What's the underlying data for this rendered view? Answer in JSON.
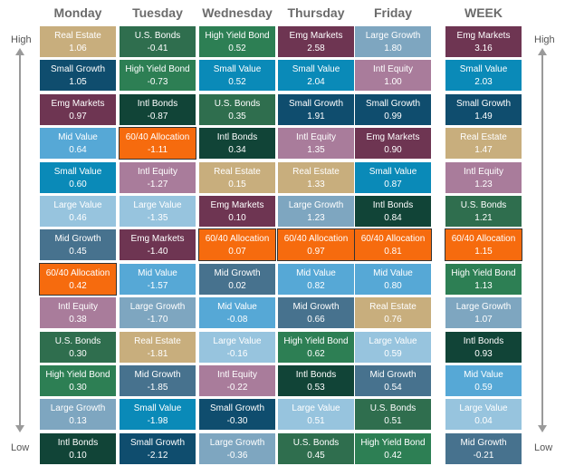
{
  "side_labels": {
    "high": "High",
    "low": "Low"
  },
  "colors": {
    "Real Estate": "#c8ae7d",
    "Small Growth": "#0f4d6e",
    "Emg Markets": "#6e3552",
    "Mid Value": "#56a8d6",
    "Small Value": "#0a8ab8",
    "Large Value": "#97c4de",
    "Mid Growth": "#47728e",
    "60/40 Allocation": "#f66b0e",
    "Intl Equity": "#a97c9b",
    "U.S. Bonds": "#2f6e4e",
    "High Yield Bond": "#2d7f54",
    "Large Growth": "#7ea6c0",
    "Intl Bonds": "#114437"
  },
  "chart_data": {
    "type": "table",
    "columns": [
      {
        "header": "Monday",
        "rows": [
          {
            "name": "Real Estate",
            "value": "1.06"
          },
          {
            "name": "Small Growth",
            "value": "1.05"
          },
          {
            "name": "Emg Markets",
            "value": "0.97"
          },
          {
            "name": "Mid Value",
            "value": "0.64"
          },
          {
            "name": "Small Value",
            "value": "0.60"
          },
          {
            "name": "Large Value",
            "value": "0.46"
          },
          {
            "name": "Mid Growth",
            "value": "0.45"
          },
          {
            "name": "60/40 Allocation",
            "value": "0.42"
          },
          {
            "name": "Intl Equity",
            "value": "0.38"
          },
          {
            "name": "U.S. Bonds",
            "value": "0.30"
          },
          {
            "name": "High Yield Bond",
            "value": "0.30"
          },
          {
            "name": "Large Growth",
            "value": "0.13"
          },
          {
            "name": "Intl Bonds",
            "value": "0.10"
          }
        ]
      },
      {
        "header": "Tuesday",
        "rows": [
          {
            "name": "U.S. Bonds",
            "value": "-0.41"
          },
          {
            "name": "High Yield Bond",
            "value": "-0.73"
          },
          {
            "name": "Intl Bonds",
            "value": "-0.87"
          },
          {
            "name": "60/40 Allocation",
            "value": "-1.11"
          },
          {
            "name": "Intl Equity",
            "value": "-1.27"
          },
          {
            "name": "Large Value",
            "value": "-1.35"
          },
          {
            "name": "Emg Markets",
            "value": "-1.40"
          },
          {
            "name": "Mid Value",
            "value": "-1.57"
          },
          {
            "name": "Large Growth",
            "value": "-1.70"
          },
          {
            "name": "Real Estate",
            "value": "-1.81"
          },
          {
            "name": "Mid Growth",
            "value": "-1.85"
          },
          {
            "name": "Small Value",
            "value": "-1.98"
          },
          {
            "name": "Small Growth",
            "value": "-2.12"
          }
        ]
      },
      {
        "header": "Wednesday",
        "rows": [
          {
            "name": "High Yield Bond",
            "value": "0.52"
          },
          {
            "name": "Small Value",
            "value": "0.52"
          },
          {
            "name": "U.S. Bonds",
            "value": "0.35"
          },
          {
            "name": "Intl Bonds",
            "value": "0.34"
          },
          {
            "name": "Real Estate",
            "value": "0.15"
          },
          {
            "name": "Emg Markets",
            "value": "0.10"
          },
          {
            "name": "60/40 Allocation",
            "value": "0.07"
          },
          {
            "name": "Mid Growth",
            "value": "0.02"
          },
          {
            "name": "Mid Value",
            "value": "-0.08"
          },
          {
            "name": "Large Value",
            "value": "-0.16"
          },
          {
            "name": "Intl Equity",
            "value": "-0.22"
          },
          {
            "name": "Small Growth",
            "value": "-0.30"
          },
          {
            "name": "Large Growth",
            "value": "-0.36"
          }
        ]
      },
      {
        "header": "Thursday",
        "rows": [
          {
            "name": "Emg Markets",
            "value": "2.58"
          },
          {
            "name": "Small Value",
            "value": "2.04"
          },
          {
            "name": "Small Growth",
            "value": "1.91"
          },
          {
            "name": "Intl Equity",
            "value": "1.35"
          },
          {
            "name": "Real Estate",
            "value": "1.33"
          },
          {
            "name": "Large Growth",
            "value": "1.23"
          },
          {
            "name": "60/40 Allocation",
            "value": "0.97"
          },
          {
            "name": "Mid Value",
            "value": "0.82"
          },
          {
            "name": "Mid Growth",
            "value": "0.66"
          },
          {
            "name": "High Yield Bond",
            "value": "0.62"
          },
          {
            "name": "Intl Bonds",
            "value": "0.53"
          },
          {
            "name": "Large Value",
            "value": "0.51"
          },
          {
            "name": "U.S. Bonds",
            "value": "0.45"
          }
        ]
      },
      {
        "header": "Friday",
        "rows": [
          {
            "name": "Large Growth",
            "value": "1.80"
          },
          {
            "name": "Intl Equity",
            "value": "1.00"
          },
          {
            "name": "Small Growth",
            "value": "0.99"
          },
          {
            "name": "Emg Markets",
            "value": "0.90"
          },
          {
            "name": "Small Value",
            "value": "0.87"
          },
          {
            "name": "Intl Bonds",
            "value": "0.84"
          },
          {
            "name": "60/40 Allocation",
            "value": "0.81"
          },
          {
            "name": "Mid Value",
            "value": "0.80"
          },
          {
            "name": "Real Estate",
            "value": "0.76"
          },
          {
            "name": "Large Value",
            "value": "0.59"
          },
          {
            "name": "Mid Growth",
            "value": "0.54"
          },
          {
            "name": "U.S. Bonds",
            "value": "0.51"
          },
          {
            "name": "High Yield Bond",
            "value": "0.42"
          }
        ]
      },
      {
        "header": "WEEK",
        "rows": [
          {
            "name": "Emg Markets",
            "value": "3.16"
          },
          {
            "name": "Small Value",
            "value": "2.03"
          },
          {
            "name": "Small Growth",
            "value": "1.49"
          },
          {
            "name": "Real Estate",
            "value": "1.47"
          },
          {
            "name": "Intl Equity",
            "value": "1.23"
          },
          {
            "name": "U.S. Bonds",
            "value": "1.21"
          },
          {
            "name": "60/40 Allocation",
            "value": "1.15"
          },
          {
            "name": "High Yield Bond",
            "value": "1.13"
          },
          {
            "name": "Large Growth",
            "value": "1.07"
          },
          {
            "name": "Intl Bonds",
            "value": "0.93"
          },
          {
            "name": "Mid Value",
            "value": "0.59"
          },
          {
            "name": "Large Value",
            "value": "0.04"
          },
          {
            "name": "Mid Growth",
            "value": "-0.21"
          }
        ]
      }
    ]
  }
}
